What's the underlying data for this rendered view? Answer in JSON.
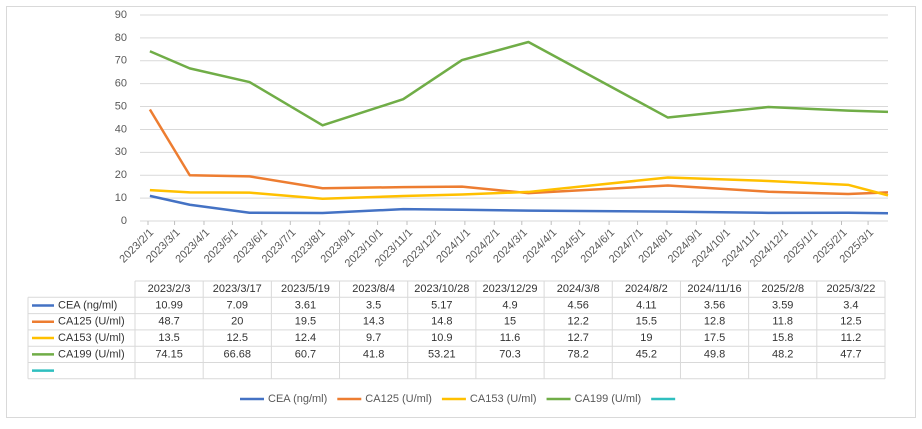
{
  "chart_data": {
    "type": "line",
    "x": [
      "2023/2/3",
      "2023/3/17",
      "2023/5/19",
      "2023/8/4",
      "2023/10/28",
      "2023/12/29",
      "2024/3/8",
      "2024/8/2",
      "2024/11/16",
      "2025/2/8",
      "2025/3/22"
    ],
    "series": [
      {
        "name": "CEA  (ng/ml)",
        "color": "#4472c4",
        "values": [
          10.99,
          7.09,
          3.61,
          3.5,
          5.17,
          4.9,
          4.56,
          4.11,
          3.56,
          3.59,
          3.4
        ]
      },
      {
        "name": "CA125  (U/ml)",
        "color": "#ed7d31",
        "values": [
          48.7,
          20,
          19.5,
          14.3,
          14.8,
          15,
          12.2,
          15.5,
          12.8,
          11.8,
          12.5
        ]
      },
      {
        "name": "CA153  (U/ml)",
        "color": "#ffc000",
        "values": [
          13.5,
          12.5,
          12.4,
          9.7,
          10.9,
          11.6,
          12.7,
          19,
          17.5,
          15.8,
          11.2
        ]
      },
      {
        "name": "CA199  (U/ml)",
        "color": "#70ad47",
        "values": [
          74.15,
          66.68,
          60.7,
          41.8,
          53.21,
          70.3,
          78.2,
          45.2,
          49.8,
          48.2,
          47.7
        ]
      },
      {
        "color": "#2fbfbf",
        "values": [
          null,
          null,
          null,
          null,
          null,
          null,
          null,
          null,
          null,
          null,
          null
        ]
      }
    ],
    "xlim": [
      "2023/2/1",
      "2025/3/22"
    ],
    "xticks": [
      "2023/2/1",
      "2023/3/1",
      "2023/4/1",
      "2023/5/1",
      "2023/6/1",
      "2023/7/1",
      "2023/8/1",
      "2023/9/1",
      "2023/10/1",
      "2023/11/1",
      "2023/12/1",
      "2024/1/1",
      "2024/2/1",
      "2024/3/1",
      "2024/4/1",
      "2024/5/1",
      "2024/6/1",
      "2024/7/1",
      "2024/8/1",
      "2024/9/1",
      "2024/10/1",
      "2024/11/1",
      "2024/12/1",
      "2025/1/1",
      "2025/2/1",
      "2025/3/1"
    ],
    "ylim": [
      0,
      90
    ],
    "yticks": [
      0,
      10,
      20,
      30,
      40,
      50,
      60,
      70,
      80,
      90
    ],
    "grid": true,
    "legend": "bottom",
    "data_table": true
  }
}
